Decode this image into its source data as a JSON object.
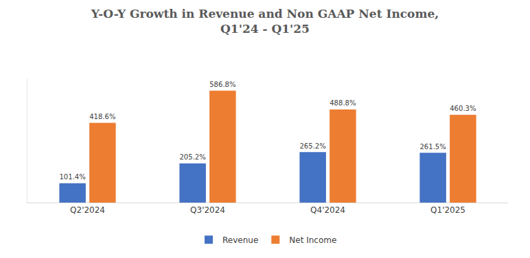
{
  "chart_data": {
    "type": "bar",
    "title": "Y-O-Y Growth in Revenue and Non GAAP Net Income,\nQ1'24 - Q1'25",
    "categories": [
      "Q2'2024",
      "Q3'2024",
      "Q4'2024",
      "Q1'2025"
    ],
    "series": [
      {
        "name": "Revenue",
        "color": "#4472c4",
        "values": [
          101.4,
          205.2,
          265.2,
          261.5
        ],
        "value_labels": [
          "101.4%",
          "205.2%",
          "265.2%",
          "261.5%"
        ]
      },
      {
        "name": "Net Income",
        "color": "#ed7d31",
        "values": [
          418.6,
          586.8,
          488.8,
          460.3
        ],
        "value_labels": [
          "418.6%",
          "586.8%",
          "488.8%",
          "460.3%"
        ]
      }
    ],
    "ylim": [
      0,
      650
    ],
    "grid": false,
    "legend": "bottom",
    "data_labels": true,
    "tick_labels": "x"
  }
}
